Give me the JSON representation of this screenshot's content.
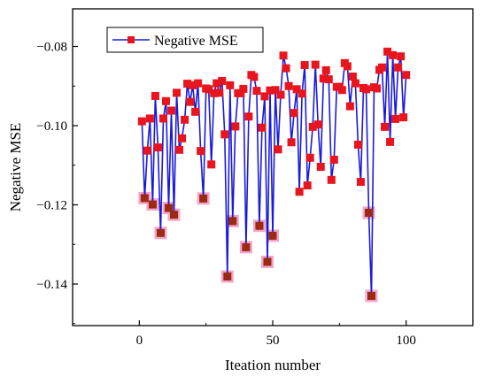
{
  "chart_data": {
    "type": "line",
    "title": "",
    "xlabel": "Iteation number",
    "ylabel": "Negative MSE",
    "xlim": [
      -25,
      125
    ],
    "ylim": [
      -0.1505,
      -0.0705
    ],
    "x_ticks": [
      0,
      50,
      100
    ],
    "x_tick_labels": [
      "0",
      "50",
      "100"
    ],
    "y_ticks": [
      -0.14,
      -0.12,
      -0.1,
      -0.08
    ],
    "y_tick_labels": [
      "−0.14",
      "−0.12",
      "−0.10",
      "−0.08"
    ],
    "grid": false,
    "legend_position": "top-left",
    "colors": {
      "line": "#1a1adc",
      "marker": "#e8141e",
      "highlight": "#f2a6cc",
      "low_marker": "#9c2a12"
    },
    "series": [
      {
        "name": "Negative MSE",
        "x": [
          1,
          2,
          3,
          4,
          5,
          6,
          7,
          8,
          9,
          10,
          11,
          12,
          13,
          14,
          15,
          16,
          17,
          18,
          19,
          20,
          21,
          22,
          23,
          24,
          25,
          26,
          27,
          28,
          29,
          30,
          31,
          32,
          33,
          34,
          35,
          36,
          37,
          38,
          39,
          40,
          41,
          42,
          43,
          44,
          45,
          46,
          47,
          48,
          49,
          50,
          51,
          52,
          53,
          54,
          55,
          56,
          57,
          58,
          59,
          60,
          61,
          62,
          63,
          64,
          65,
          66,
          67,
          68,
          69,
          70,
          71,
          72,
          73,
          74,
          75,
          76,
          77,
          78,
          79,
          80,
          81,
          82,
          83,
          84,
          85,
          86,
          87,
          88,
          89,
          90,
          91,
          92,
          93,
          94,
          95,
          96,
          97,
          98,
          99,
          100
        ],
        "y": [
          -0.0989,
          -0.1183,
          -0.1063,
          -0.0982,
          -0.1199,
          -0.0925,
          -0.1055,
          -0.1271,
          -0.0982,
          -0.0938,
          -0.1208,
          -0.0962,
          -0.1225,
          -0.0917,
          -0.1061,
          -0.1032,
          -0.0985,
          -0.0894,
          -0.094,
          -0.0898,
          -0.0965,
          -0.0893,
          -0.1064,
          -0.1184,
          -0.0906,
          -0.0908,
          -0.1098,
          -0.0918,
          -0.0893,
          -0.0917,
          -0.0887,
          -0.1022,
          -0.1381,
          -0.0898,
          -0.1241,
          -0.1002,
          -0.0918,
          -0.0918,
          -0.0907,
          -0.1307,
          -0.0977,
          -0.0872,
          -0.0877,
          -0.0912,
          -0.1253,
          -0.1005,
          -0.0926,
          -0.1344,
          -0.0911,
          -0.1278,
          -0.091,
          -0.106,
          -0.0922,
          -0.0823,
          -0.0855,
          -0.09,
          -0.1042,
          -0.0968,
          -0.0908,
          -0.1167,
          -0.0919,
          -0.0847,
          -0.1151,
          -0.1081,
          -0.1003,
          -0.0846,
          -0.0997,
          -0.1104,
          -0.0881,
          -0.086,
          -0.0883,
          -0.1137,
          -0.1086,
          -0.0902,
          -0.0902,
          -0.091,
          -0.0842,
          -0.085,
          -0.0951,
          -0.0876,
          -0.0893,
          -0.1048,
          -0.1142,
          -0.0905,
          -0.0908,
          -0.122,
          -0.143,
          -0.0903,
          -0.0906,
          -0.0859,
          -0.0853,
          -0.1003,
          -0.0813,
          -0.1041,
          -0.0822,
          -0.0983,
          -0.0853,
          -0.0825,
          -0.0979,
          -0.0872
        ],
        "highlighted_points": [
          2,
          5,
          8,
          11,
          13,
          24,
          33,
          35,
          40,
          45,
          48,
          50,
          86,
          87
        ]
      }
    ]
  }
}
